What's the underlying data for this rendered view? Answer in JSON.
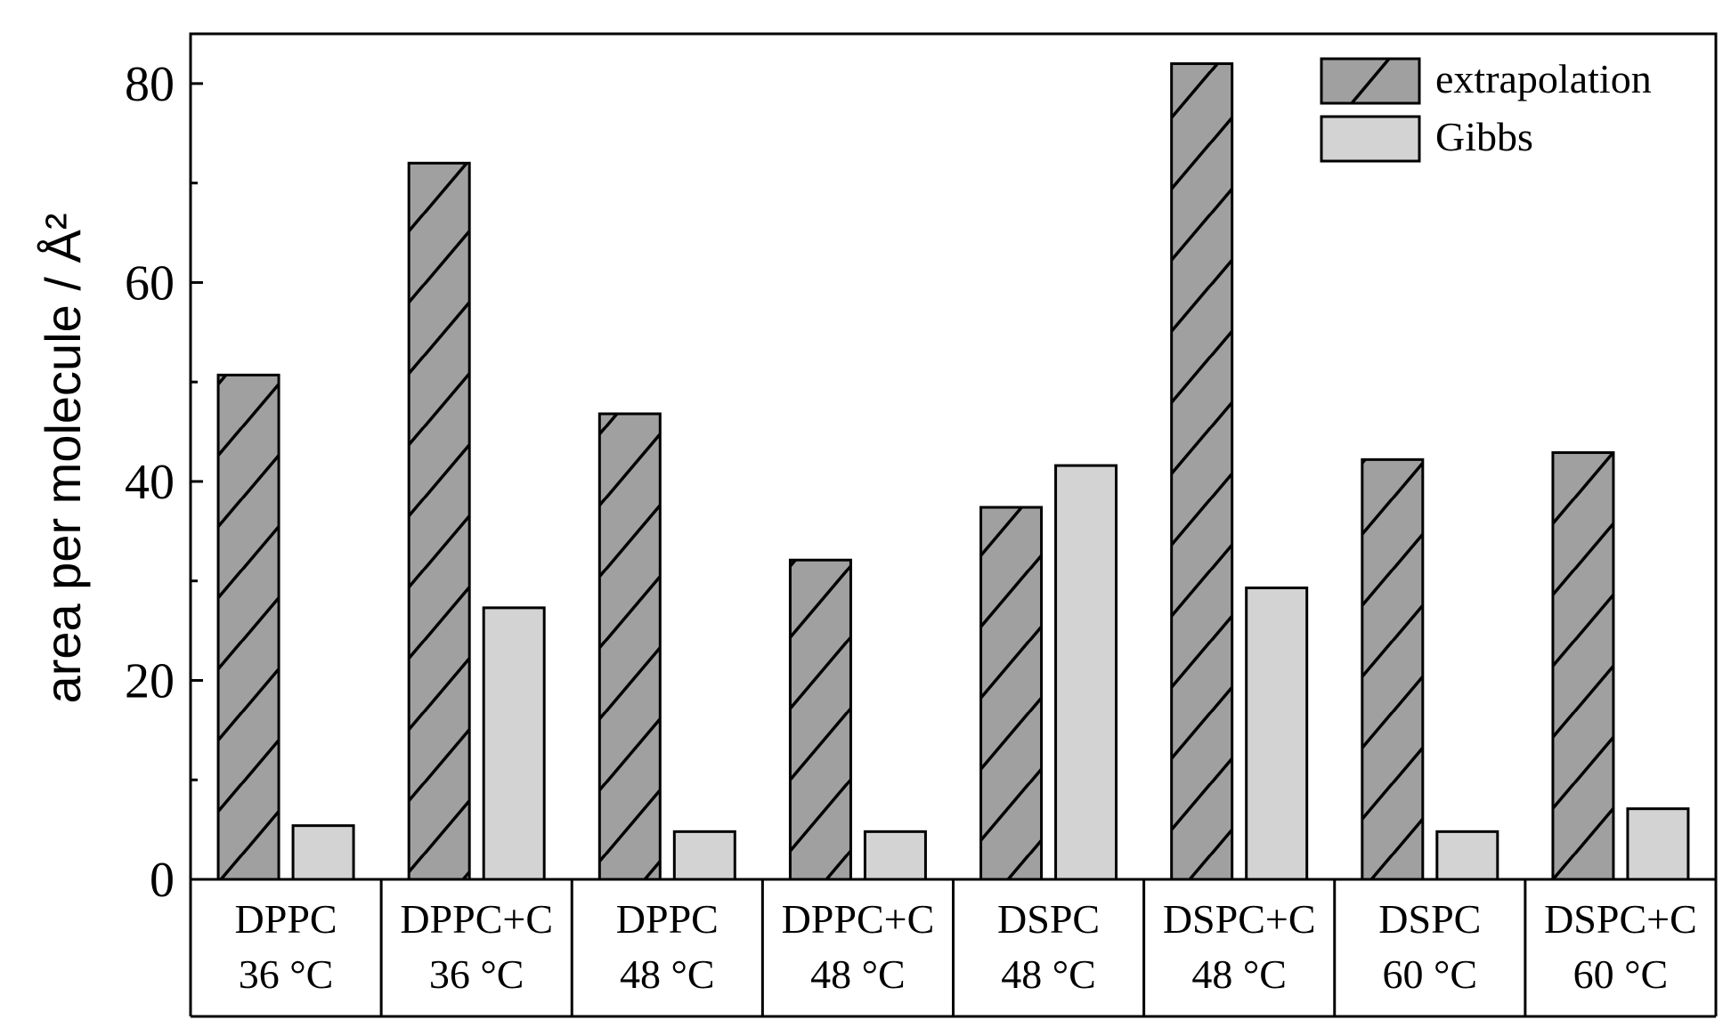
{
  "chart_data": {
    "type": "bar",
    "ylabel": "area per molecule / Å²",
    "ylim": [
      0,
      85
    ],
    "yticks": [
      0,
      20,
      40,
      60,
      80
    ],
    "categories": [
      [
        "DPPC",
        "36 °C"
      ],
      [
        "DPPC+C",
        "36 °C"
      ],
      [
        "DPPC",
        "48 °C"
      ],
      [
        "DPPC+C",
        "48 °C"
      ],
      [
        "DSPC",
        "48 °C"
      ],
      [
        "DSPC+C",
        "48 °C"
      ],
      [
        "DSPC",
        "60 °C"
      ],
      [
        "DSPC+C",
        "60 °C"
      ]
    ],
    "series": [
      {
        "name": "extrapolation",
        "color": "#a0a0a0",
        "pattern": "hatch",
        "values": [
          50.7,
          72.0,
          46.8,
          32.1,
          37.4,
          82.0,
          42.2,
          42.9
        ]
      },
      {
        "name": "Gibbs",
        "color": "#d3d3d3",
        "pattern": "solid",
        "values": [
          5.4,
          27.3,
          4.8,
          4.8,
          41.6,
          29.3,
          4.8,
          7.1
        ]
      }
    ],
    "legend_position": "top-right",
    "grid": false
  }
}
